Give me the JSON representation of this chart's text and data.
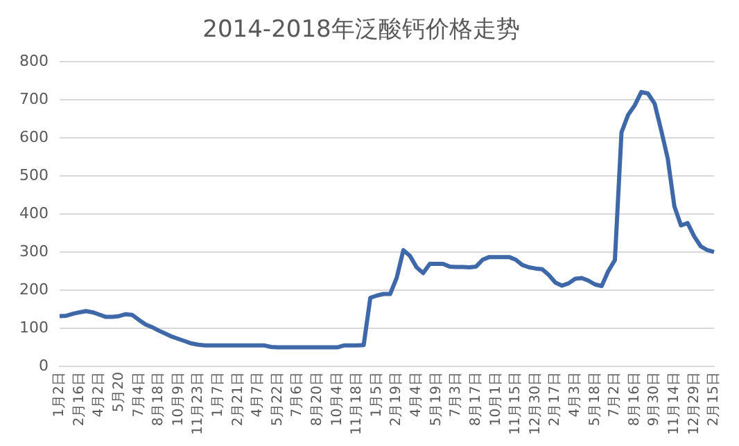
{
  "chart_data": {
    "type": "line",
    "title": "2014-2018年泛酸钙价格走势",
    "categories": [
      "1月2日",
      null,
      null,
      "2月16日",
      null,
      null,
      "4月2日",
      null,
      null,
      "5月20",
      null,
      null,
      "7月4日",
      null,
      null,
      "8月18日",
      null,
      null,
      "10月9日",
      null,
      null,
      "11月23日",
      null,
      null,
      "1月7日",
      null,
      null,
      "2月21日",
      null,
      null,
      "4月7日",
      null,
      null,
      "5月22日",
      null,
      null,
      "7月6日",
      null,
      null,
      "8月20日",
      null,
      null,
      "10月4日",
      null,
      null,
      "11月18日",
      null,
      null,
      "1月5日",
      null,
      null,
      "2月19日",
      null,
      null,
      "4月4日",
      null,
      null,
      "5月19日",
      null,
      null,
      "7月3日",
      null,
      null,
      "8月17日",
      null,
      null,
      "10月1日",
      null,
      null,
      "11月15日",
      null,
      null,
      "12月30日",
      null,
      null,
      "2月17日",
      null,
      null,
      "4月3日",
      null,
      null,
      "5月18日",
      null,
      null,
      "7月2日",
      null,
      null,
      "8月16日",
      null,
      null,
      "9月30日",
      null,
      null,
      "11月14日",
      null,
      null,
      "12月29日",
      null,
      null,
      "2月15日"
    ],
    "series": [
      {
        "color": "#3f68a8",
        "values": [
          132,
          133,
          138,
          142,
          145,
          142,
          136,
          130,
          130,
          132,
          137,
          135,
          122,
          110,
          103,
          94,
          86,
          78,
          72,
          66,
          60,
          57,
          55,
          55,
          55,
          55,
          55,
          55,
          55,
          55,
          55,
          55,
          51,
          50,
          50,
          50,
          50,
          50,
          50,
          50,
          50,
          50,
          50,
          55,
          55,
          55,
          56,
          180,
          186,
          190,
          190,
          233,
          305,
          290,
          260,
          245,
          269,
          269,
          269,
          262,
          261,
          261,
          260,
          262,
          280,
          287,
          287,
          287,
          287,
          280,
          266,
          260,
          257,
          255,
          240,
          220,
          212,
          218,
          230,
          232,
          225,
          215,
          211,
          250,
          279,
          614,
          660,
          685,
          720,
          716,
          690,
          620,
          545,
          420,
          370,
          376,
          341,
          315,
          305,
          300
        ]
      }
    ],
    "ylim": [
      0,
      800
    ],
    "yticks": [
      0,
      100,
      200,
      300,
      400,
      500,
      600,
      700,
      800
    ],
    "grid": "y",
    "legend": false,
    "marker": "none",
    "line_style": "solid"
  }
}
